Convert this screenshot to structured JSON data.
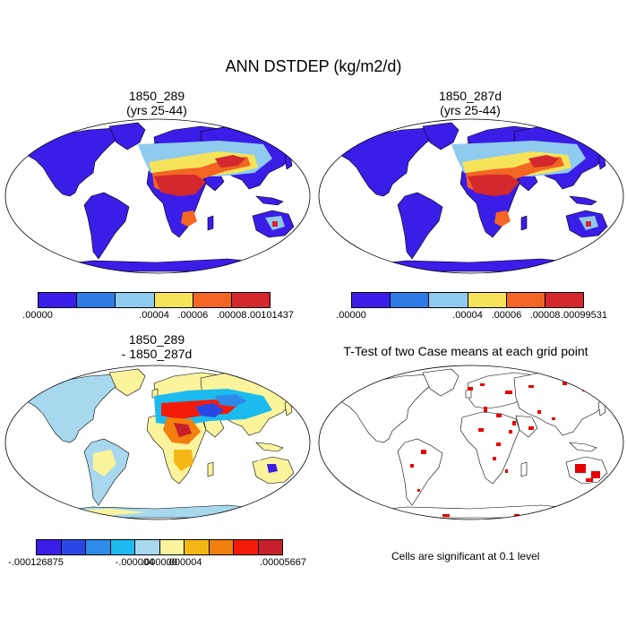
{
  "title": "ANN DSTDEP (kg/m2/d)",
  "panels": [
    {
      "title_line1": "1850_289",
      "title_line2": "(yrs 25-44)"
    },
    {
      "title_line1": "1850_287d",
      "title_line2": "(yrs 25-44)"
    },
    {
      "title_line1": "1850_289",
      "title_line2": "- 1850_287d"
    },
    {
      "title_line1": "T-Test of two Case means at each grid point",
      "title_line2": ""
    }
  ],
  "colorbars": [
    {
      "colors": [
        "#3b1de8",
        "#2f7be6",
        "#8ecbef",
        "#f7e35a",
        "#f26522",
        "#d3282e"
      ],
      "labels": [
        ".00000",
        ".00004",
        ".00006",
        ".00008",
        ".00101437"
      ]
    },
    {
      "colors": [
        "#3b1de8",
        "#2f7be6",
        "#8ecbef",
        "#f7e35a",
        "#f26522",
        "#d3282e"
      ],
      "labels": [
        ".00000",
        ".00004",
        ".00006",
        ".00008",
        ".00099531"
      ]
    },
    {
      "colors": [
        "#3b1de8",
        "#2a47e6",
        "#2e8ae9",
        "#1cbbef",
        "#a7d8ee",
        "#fbf49c",
        "#f5b715",
        "#f2800e",
        "#f51b0b",
        "#c8202a"
      ],
      "labels": [
        "-.000126875",
        "-.000004",
        ".000000",
        ".000004",
        ".00005667"
      ]
    }
  ],
  "significance_note": "Cells are significant at 0.1 level",
  "map_colors": {
    "ocean": "#ffffff",
    "land_low": "#3b1de8",
    "significant": "#e60000",
    "diff_neutral": "#a7d8ee"
  }
}
